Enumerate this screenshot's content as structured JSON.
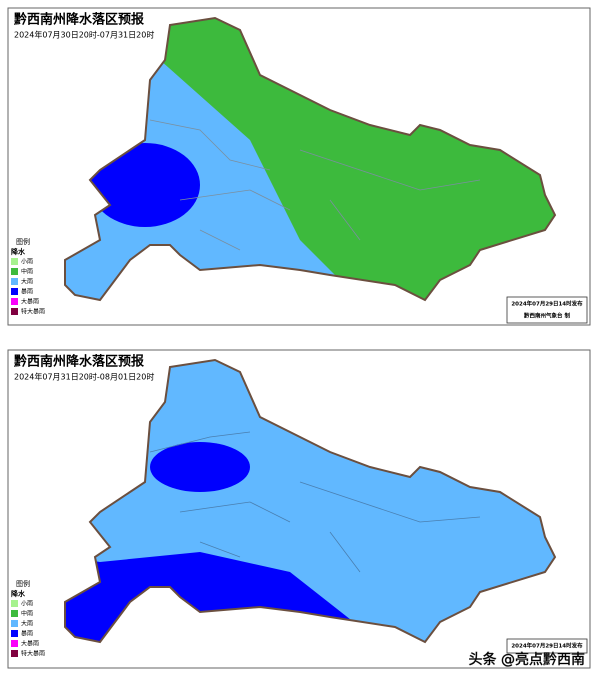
{
  "panels": [
    {
      "title": "黔西南州降水落区预报",
      "period": "2024年07月30日20时-07月31日20时",
      "legend": {
        "title": "图例",
        "subtitle": "降水",
        "items": [
          {
            "label": "小雨",
            "color": "#a6f28f"
          },
          {
            "label": "中雨",
            "color": "#3dba3d"
          },
          {
            "label": "大雨",
            "color": "#61b8ff"
          },
          {
            "label": "暴雨",
            "color": "#0000fe"
          },
          {
            "label": "大暴雨",
            "color": "#fa00fa"
          },
          {
            "label": "特大暴雨",
            "color": "#800040"
          }
        ]
      },
      "issued": "2024年07月29日14时发布",
      "producer": "黔西南州气象台 制"
    },
    {
      "title": "黔西南州降水落区预报",
      "period": "2024年07月31日20时-08月01日20时",
      "legend": {
        "title": "图例",
        "subtitle": "降水",
        "items": [
          {
            "label": "小雨",
            "color": "#a6f28f"
          },
          {
            "label": "中雨",
            "color": "#3dba3d"
          },
          {
            "label": "大雨",
            "color": "#61b8ff"
          },
          {
            "label": "暴雨",
            "color": "#0000fe"
          },
          {
            "label": "大暴雨",
            "color": "#fa00fa"
          },
          {
            "label": "特大暴雨",
            "color": "#800040"
          }
        ]
      },
      "issued": "2024年07月29日14时发布"
    }
  ],
  "watermark": "头条 @亮点黔西南"
}
